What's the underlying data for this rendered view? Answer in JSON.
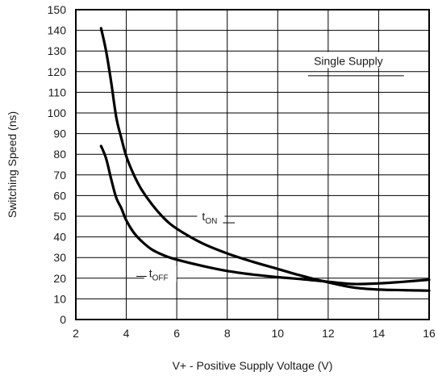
{
  "chart_data": {
    "type": "line",
    "xlabel": "V+ - Positive Supply Voltage (V)",
    "ylabel": "Switching Speed (ns)",
    "xlim": [
      2,
      16
    ],
    "ylim": [
      0,
      150
    ],
    "xticks": [
      2,
      4,
      6,
      8,
      10,
      12,
      14,
      16
    ],
    "yticks": [
      0,
      10,
      20,
      30,
      40,
      50,
      60,
      70,
      80,
      90,
      100,
      110,
      120,
      130,
      140,
      150
    ],
    "grid": true,
    "legend": "none",
    "annotation": "Single Supply",
    "series": [
      {
        "name": "t",
        "subscript": "ON",
        "x": [
          3,
          3.2,
          3.4,
          3.6,
          3.8,
          4,
          4.3,
          4.6,
          5,
          5.5,
          6,
          7,
          8,
          9,
          10,
          11,
          12,
          13,
          14,
          15,
          16
        ],
        "y": [
          141,
          130,
          115,
          98,
          88,
          79,
          70,
          63,
          56,
          49,
          44,
          37,
          32,
          28,
          24.5,
          21,
          18,
          15.5,
          14.5,
          14.2,
          14
        ]
      },
      {
        "name": "t",
        "subscript": "OFF",
        "x": [
          3,
          3.2,
          3.4,
          3.6,
          3.8,
          4,
          4.3,
          4.6,
          5,
          5.5,
          6,
          7,
          8,
          9,
          10,
          11,
          12,
          13,
          14,
          15,
          16
        ],
        "y": [
          84,
          78,
          68,
          59,
          54,
          48,
          42,
          38,
          34,
          31,
          29,
          26,
          23.5,
          21.8,
          20.5,
          19.5,
          18.3,
          17.2,
          17.5,
          18.3,
          19.3
        ]
      }
    ]
  }
}
